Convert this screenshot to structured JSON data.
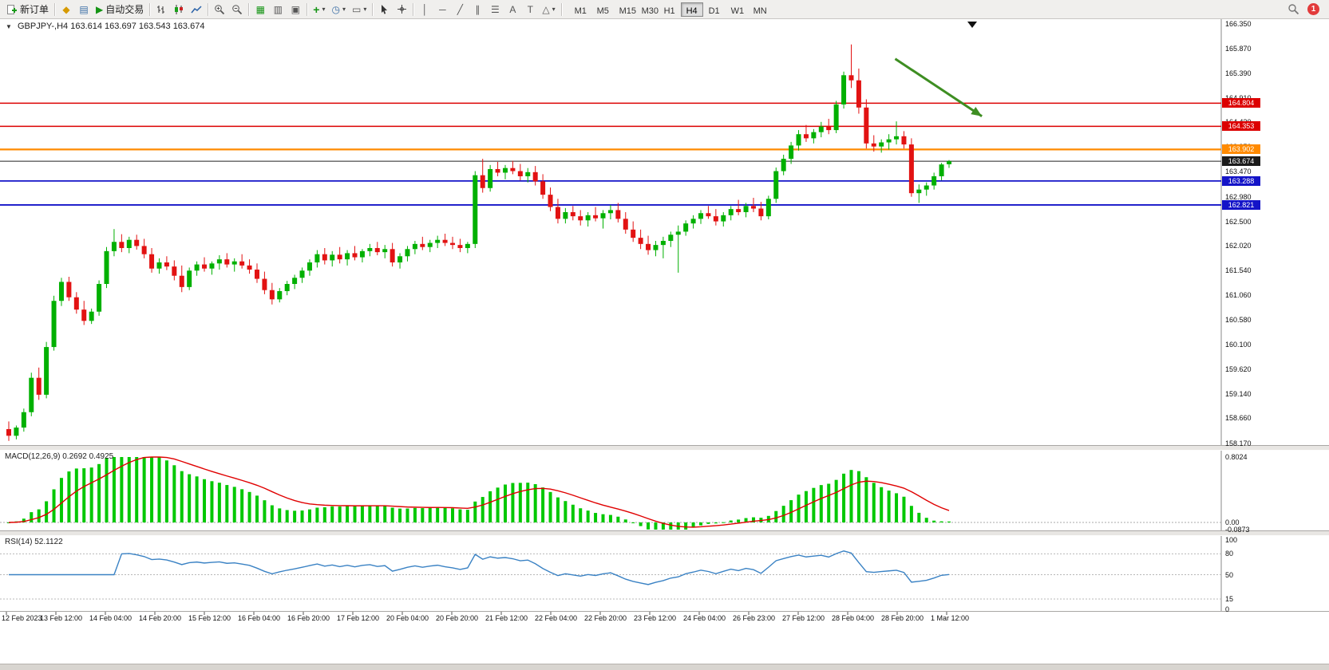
{
  "toolbar": {
    "new_order_label": "新订单",
    "autotrading_label": "自动交易",
    "timeframes": [
      "M1",
      "M5",
      "M15",
      "M30",
      "H1",
      "H4",
      "D1",
      "W1",
      "MN"
    ],
    "active_timeframe": "H4",
    "notification_count": "1",
    "icons": {
      "market_watch": "◆",
      "navigator": "▤",
      "autotrading_play": "▶",
      "tile_windows": "▦",
      "cascade_windows": "▥",
      "arrange_windows": "▣",
      "indicators_plus": "+",
      "period_clock": "◷",
      "template_chart": "▭",
      "dropdown_arrow": "▾",
      "vertical_line": "│",
      "horizontal_line": "─",
      "trendline": "╱",
      "channel": "∥",
      "fibonacci": "☰",
      "text_tool": "A",
      "label_tool": "T",
      "shapes": "△",
      "chart_dropdown": "▼"
    }
  },
  "chart_header": {
    "symbol_period": "GBPJPY-,H4",
    "ohlc_text": "163.614 163.697 163.543 163.674"
  },
  "macd_panel": {
    "label": "MACD(12,26,9) 0.2692 0.4925",
    "fast": 12,
    "slow": 26,
    "signal_period": 9,
    "values_text": [
      "0.2692",
      "0.4925"
    ],
    "axis_labels": [
      "0.8024",
      "0.00",
      "-0.0873"
    ],
    "scale_max": 0.8024,
    "scale_min": -0.0873
  },
  "rsi_panel": {
    "label": "RSI(14) 52.1122",
    "period": 14,
    "value_text": "52.1122",
    "axis_labels": [
      "100",
      "80",
      "50",
      "15",
      "0"
    ],
    "level_lines": [
      80,
      50,
      15
    ]
  },
  "chart_data": {
    "type": "candlestick",
    "symbol": "GBPJPY-",
    "timeframe": "H4",
    "current_price": "163.674",
    "price_axis_ticks": [
      "166.350",
      "165.870",
      "165.390",
      "164.910",
      "164.430",
      "163.950",
      "163.470",
      "162.980",
      "162.500",
      "162.020",
      "161.540",
      "161.060",
      "160.580",
      "160.100",
      "159.620",
      "159.140",
      "158.660",
      "158.170"
    ],
    "time_axis_ticks": [
      "12 Feb 2023",
      "13 Feb 12:00",
      "14 Feb 04:00",
      "14 Feb 20:00",
      "15 Feb 12:00",
      "16 Feb 04:00",
      "16 Feb 20:00",
      "17 Feb 12:00",
      "20 Feb 04:00",
      "20 Feb 20:00",
      "21 Feb 12:00",
      "22 Feb 04:00",
      "22 Feb 20:00",
      "23 Feb 12:00",
      "24 Feb 04:00",
      "26 Feb 23:00",
      "27 Feb 12:00",
      "28 Feb 04:00",
      "28 Feb 20:00",
      "1 Mar 12:00"
    ],
    "horizontal_levels": [
      {
        "price": 164.804,
        "label": "164.804",
        "color": "#dc0000",
        "width": 1.5
      },
      {
        "price": 164.353,
        "label": "164.353",
        "color": "#dc0000",
        "width": 1.5
      },
      {
        "price": 163.902,
        "label": "163.902",
        "color": "#ff8a00",
        "width": 2.2
      },
      {
        "price": 163.674,
        "label": "163.674",
        "color": "#222222",
        "width": 1,
        "current": true
      },
      {
        "price": 163.288,
        "label": "163.288",
        "color": "#1414c8",
        "width": 1.8
      },
      {
        "price": 162.821,
        "label": "162.821",
        "color": "#1414c8",
        "width": 1.8
      }
    ],
    "colors": {
      "up": "#00b000",
      "down": "#e21212",
      "macd_hist": "#00c800",
      "macd_signal": "#e00000",
      "rsi_line": "#3a82c4"
    },
    "annotation": {
      "type": "arrow",
      "x1_frac": 0.733,
      "y1_price": 165.67,
      "x2_frac": 0.804,
      "y2_price": 164.55,
      "color": "#3e8e22"
    },
    "ohlc": [
      [
        158.45,
        158.6,
        158.22,
        158.32
      ],
      [
        158.32,
        158.52,
        158.25,
        158.48
      ],
      [
        158.48,
        158.85,
        158.4,
        158.78
      ],
      [
        158.78,
        159.55,
        158.7,
        159.45
      ],
      [
        159.45,
        159.65,
        159.02,
        159.12
      ],
      [
        159.12,
        160.15,
        159.05,
        160.05
      ],
      [
        160.05,
        161.05,
        159.98,
        160.95
      ],
      [
        160.95,
        161.4,
        160.85,
        161.32
      ],
      [
        161.32,
        161.42,
        160.95,
        161.02
      ],
      [
        161.02,
        161.12,
        160.7,
        160.78
      ],
      [
        160.78,
        160.95,
        160.48,
        160.56
      ],
      [
        160.56,
        160.8,
        160.5,
        160.74
      ],
      [
        160.74,
        161.35,
        160.66,
        161.28
      ],
      [
        161.28,
        162.0,
        161.2,
        161.92
      ],
      [
        161.92,
        162.35,
        161.82,
        162.1
      ],
      [
        162.1,
        162.25,
        161.9,
        161.98
      ],
      [
        161.98,
        162.2,
        161.88,
        162.14
      ],
      [
        162.14,
        162.24,
        161.95,
        162.02
      ],
      [
        162.02,
        162.16,
        161.78,
        161.86
      ],
      [
        161.86,
        161.98,
        161.5,
        161.58
      ],
      [
        161.58,
        161.78,
        161.48,
        161.7
      ],
      [
        161.7,
        161.82,
        161.55,
        161.62
      ],
      [
        161.62,
        161.74,
        161.35,
        161.44
      ],
      [
        161.44,
        161.64,
        161.12,
        161.22
      ],
      [
        161.22,
        161.6,
        161.16,
        161.54
      ],
      [
        161.54,
        161.72,
        161.44,
        161.66
      ],
      [
        161.66,
        161.8,
        161.52,
        161.58
      ],
      [
        161.58,
        161.72,
        161.46,
        161.68
      ],
      [
        161.68,
        161.84,
        161.56,
        161.76
      ],
      [
        161.76,
        161.88,
        161.6,
        161.66
      ],
      [
        161.66,
        161.78,
        161.52,
        161.72
      ],
      [
        161.72,
        161.86,
        161.58,
        161.64
      ],
      [
        161.64,
        161.76,
        161.48,
        161.56
      ],
      [
        161.56,
        161.68,
        161.3,
        161.38
      ],
      [
        161.38,
        161.52,
        161.08,
        161.16
      ],
      [
        161.16,
        161.3,
        160.88,
        160.98
      ],
      [
        160.98,
        161.2,
        160.92,
        161.14
      ],
      [
        161.14,
        161.34,
        161.06,
        161.28
      ],
      [
        161.28,
        161.46,
        161.18,
        161.4
      ],
      [
        161.4,
        161.6,
        161.3,
        161.54
      ],
      [
        161.54,
        161.76,
        161.44,
        161.7
      ],
      [
        161.7,
        161.94,
        161.6,
        161.86
      ],
      [
        161.86,
        161.98,
        161.66,
        161.74
      ],
      [
        161.74,
        161.92,
        161.62,
        161.85
      ],
      [
        161.85,
        162.0,
        161.68,
        161.76
      ],
      [
        161.76,
        161.94,
        161.64,
        161.88
      ],
      [
        161.88,
        162.02,
        161.74,
        161.8
      ],
      [
        161.8,
        161.96,
        161.7,
        161.92
      ],
      [
        161.92,
        162.06,
        161.82,
        161.98
      ],
      [
        161.98,
        162.1,
        161.84,
        161.9
      ],
      [
        161.9,
        162.04,
        161.78,
        161.96
      ],
      [
        161.96,
        162.08,
        161.62,
        161.7
      ],
      [
        161.7,
        161.88,
        161.58,
        161.82
      ],
      [
        161.82,
        162.02,
        161.72,
        161.96
      ],
      [
        161.96,
        162.12,
        161.86,
        162.06
      ],
      [
        162.06,
        162.2,
        161.94,
        162.0
      ],
      [
        162.0,
        162.14,
        161.9,
        162.08
      ],
      [
        162.08,
        162.22,
        161.98,
        162.14
      ],
      [
        162.14,
        162.26,
        162.02,
        162.08
      ],
      [
        162.08,
        162.2,
        161.96,
        162.04
      ],
      [
        162.04,
        162.16,
        161.9,
        161.98
      ],
      [
        161.98,
        162.1,
        161.88,
        162.06
      ],
      [
        162.06,
        163.48,
        161.98,
        163.4
      ],
      [
        163.4,
        163.72,
        163.06,
        163.15
      ],
      [
        163.15,
        163.6,
        163.08,
        163.52
      ],
      [
        163.52,
        163.66,
        163.38,
        163.45
      ],
      [
        163.45,
        163.6,
        163.32,
        163.54
      ],
      [
        163.54,
        163.68,
        163.42,
        163.48
      ],
      [
        163.48,
        163.62,
        163.3,
        163.38
      ],
      [
        163.38,
        163.54,
        163.26,
        163.46
      ],
      [
        163.46,
        163.58,
        163.2,
        163.28
      ],
      [
        163.28,
        163.42,
        162.94,
        163.02
      ],
      [
        163.02,
        163.16,
        162.7,
        162.78
      ],
      [
        162.78,
        162.94,
        162.46,
        162.55
      ],
      [
        162.55,
        162.76,
        162.46,
        162.68
      ],
      [
        162.68,
        162.8,
        162.52,
        162.6
      ],
      [
        162.6,
        162.72,
        162.42,
        162.52
      ],
      [
        162.52,
        162.68,
        162.4,
        162.62
      ],
      [
        162.62,
        162.78,
        162.5,
        162.56
      ],
      [
        162.56,
        162.72,
        162.36,
        162.66
      ],
      [
        162.66,
        162.82,
        162.54,
        162.72
      ],
      [
        162.72,
        162.86,
        162.48,
        162.55
      ],
      [
        162.55,
        162.68,
        162.26,
        162.34
      ],
      [
        162.34,
        162.5,
        162.1,
        162.18
      ],
      [
        162.18,
        162.34,
        161.96,
        162.06
      ],
      [
        162.06,
        162.22,
        161.85,
        161.94
      ],
      [
        161.94,
        162.12,
        161.82,
        162.04
      ],
      [
        162.04,
        162.2,
        161.78,
        162.12
      ],
      [
        162.12,
        162.3,
        162.0,
        162.24
      ],
      [
        162.24,
        162.42,
        161.5,
        162.3
      ],
      [
        162.3,
        162.52,
        162.22,
        162.46
      ],
      [
        162.46,
        162.62,
        162.36,
        162.55
      ],
      [
        162.55,
        162.72,
        162.45,
        162.66
      ],
      [
        162.66,
        162.8,
        162.55,
        162.6
      ],
      [
        162.6,
        162.74,
        162.42,
        162.5
      ],
      [
        162.5,
        162.68,
        162.4,
        162.62
      ],
      [
        162.62,
        162.8,
        162.52,
        162.74
      ],
      [
        162.74,
        162.92,
        162.62,
        162.68
      ],
      [
        162.68,
        162.86,
        162.58,
        162.8
      ],
      [
        162.8,
        162.96,
        162.68,
        162.75
      ],
      [
        162.75,
        162.88,
        162.52,
        162.6
      ],
      [
        162.6,
        163.0,
        162.54,
        162.94
      ],
      [
        162.94,
        163.55,
        162.86,
        163.48
      ],
      [
        163.48,
        163.8,
        163.4,
        163.72
      ],
      [
        163.72,
        164.05,
        163.62,
        163.98
      ],
      [
        163.98,
        164.28,
        163.88,
        164.2
      ],
      [
        164.2,
        164.38,
        164.05,
        164.12
      ],
      [
        164.12,
        164.3,
        164.02,
        164.24
      ],
      [
        164.24,
        164.44,
        164.14,
        164.35
      ],
      [
        164.35,
        164.5,
        164.2,
        164.28
      ],
      [
        164.28,
        164.85,
        164.22,
        164.78
      ],
      [
        164.78,
        165.42,
        164.7,
        165.35
      ],
      [
        165.35,
        165.95,
        165.1,
        165.25
      ],
      [
        165.25,
        165.48,
        164.6,
        164.72
      ],
      [
        164.72,
        164.88,
        163.92,
        164.02
      ],
      [
        164.02,
        164.18,
        163.86,
        163.96
      ],
      [
        163.96,
        164.1,
        163.84,
        164.04
      ],
      [
        164.04,
        164.2,
        163.9,
        164.1
      ],
      [
        164.1,
        164.45,
        164.0,
        164.16
      ],
      [
        164.16,
        164.26,
        163.92,
        164.0
      ],
      [
        164.0,
        164.12,
        162.98,
        163.05
      ],
      [
        163.05,
        163.22,
        162.86,
        163.12
      ],
      [
        163.12,
        163.26,
        163.0,
        163.2
      ],
      [
        163.2,
        163.45,
        163.12,
        163.38
      ],
      [
        163.38,
        163.64,
        163.3,
        163.61
      ],
      [
        163.614,
        163.697,
        163.543,
        163.674
      ]
    ]
  }
}
